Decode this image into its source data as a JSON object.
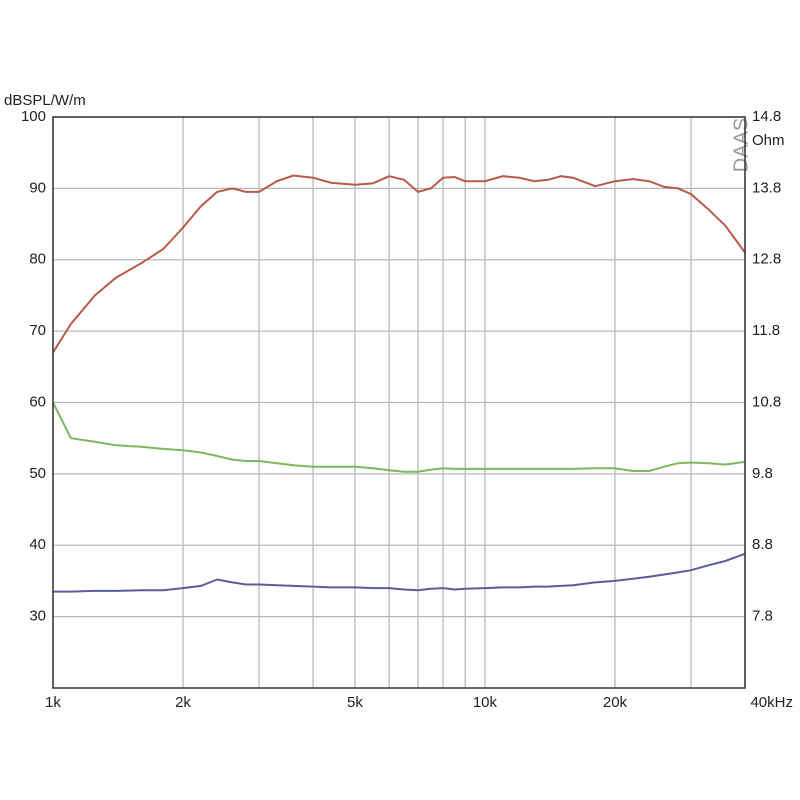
{
  "chart_data": {
    "type": "line",
    "ylabel": "dBSPL/W/m",
    "y2label": "Ohm",
    "watermark": "DAAS",
    "x": [
      1000,
      1100,
      1250,
      1400,
      1600,
      1800,
      2000,
      2200,
      2400,
      2600,
      2800,
      3000,
      3300,
      3600,
      4000,
      4400,
      5000,
      5500,
      6000,
      6500,
      7000,
      7500,
      8000,
      8500,
      9000,
      10000,
      11000,
      12000,
      13000,
      14000,
      15000,
      16000,
      18000,
      20000,
      22000,
      24000,
      26000,
      28000,
      30000,
      33000,
      36000,
      40000
    ],
    "series": [
      {
        "color": "#b85a48",
        "values": [
          67,
          71,
          75,
          77.5,
          79.5,
          81.5,
          84.5,
          87.5,
          89.5,
          90,
          89.5,
          89.5,
          91,
          91.8,
          91.5,
          90.8,
          90.5,
          90.7,
          91.7,
          91.2,
          89.5,
          90,
          91.5,
          91.6,
          91,
          91,
          91.7,
          91.5,
          91,
          91.2,
          91.7,
          91.5,
          90.3,
          91,
          91.3,
          91,
          90.2,
          90,
          89.2,
          87,
          84.8,
          81
        ]
      },
      {
        "color": "#7cb85e",
        "values": [
          60,
          55,
          54.5,
          54,
          53.8,
          53.5,
          53.3,
          53,
          52.5,
          52,
          51.8,
          51.8,
          51.5,
          51.2,
          51,
          51,
          51,
          50.8,
          50.5,
          50.3,
          50.3,
          50.6,
          50.8,
          50.7,
          50.7,
          50.7,
          50.7,
          50.7,
          50.7,
          50.7,
          50.7,
          50.7,
          50.8,
          50.8,
          50.4,
          50.4,
          51,
          51.5,
          51.6,
          51.5,
          51.3,
          51.7
        ]
      },
      {
        "color": "#5c5c9c",
        "values": [
          33.5,
          33.5,
          33.6,
          33.6,
          33.7,
          33.7,
          34,
          34.3,
          35.2,
          34.8,
          34.5,
          34.5,
          34.4,
          34.3,
          34.2,
          34.1,
          34.1,
          34,
          34,
          33.8,
          33.7,
          33.9,
          34,
          33.8,
          33.9,
          34,
          34.1,
          34.1,
          34.2,
          34.2,
          34.3,
          34.4,
          34.8,
          35,
          35.3,
          35.6,
          35.9,
          36.2,
          36.5,
          37.2,
          37.8,
          38.8
        ]
      }
    ],
    "xscale": "log",
    "xlim": [
      1000,
      40000
    ],
    "xticks": [
      {
        "value": 1000,
        "label": "1k"
      },
      {
        "value": 2000,
        "label": "2k"
      },
      {
        "value": 5000,
        "label": "5k"
      },
      {
        "value": 10000,
        "label": "10k"
      },
      {
        "value": 20000,
        "label": "20k"
      },
      {
        "value": 40000,
        "label": "40kHz"
      }
    ],
    "xgrid": [
      3000,
      4000,
      6000,
      7000,
      8000,
      9000,
      30000
    ],
    "ylim": [
      20,
      100
    ],
    "yticks": [
      30,
      40,
      50,
      60,
      70,
      80,
      90,
      100
    ],
    "y2lim": [
      6.8,
      14.8
    ],
    "y2ticks": [
      7.8,
      8.8,
      9.8,
      10.8,
      11.8,
      12.8,
      13.8,
      14.8
    ],
    "grid": true
  }
}
